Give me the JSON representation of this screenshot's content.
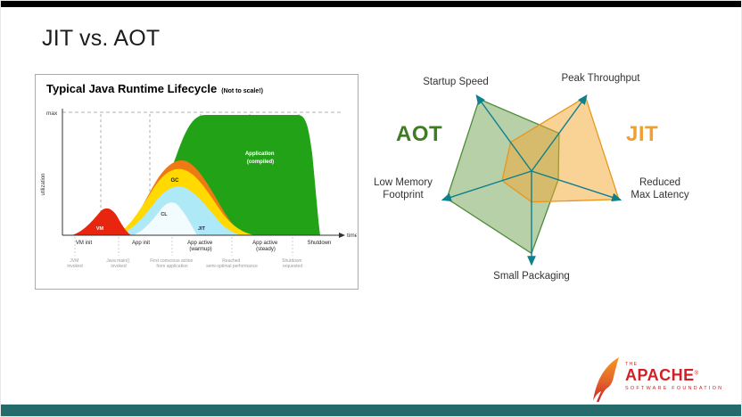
{
  "slide": {
    "title": "JIT vs. AOT"
  },
  "lifecycle": {
    "title": "Typical Java Runtime Lifecycle",
    "note": "(Not to scale!)",
    "y_axis_label": "utilization",
    "max_label": "max",
    "x_axis_label": "time",
    "phases": [
      [
        "VM init"
      ],
      [
        "App init"
      ],
      [
        "App active",
        "(warmup)"
      ],
      [
        "App active",
        "(steady)"
      ],
      [
        "Shutdown"
      ]
    ],
    "events": [
      [
        "JVM",
        "invoked"
      ],
      [
        "Java main()",
        "invoked"
      ],
      [
        "First conscious action",
        "from application"
      ],
      [
        "Reached",
        "semi-optimal performance"
      ],
      [
        "Shutdown",
        "requested"
      ]
    ],
    "area_labels": {
      "vm": "VM",
      "cl": "CL",
      "jit": "JIT",
      "gc": "GC",
      "app_line1": "Application",
      "app_line2": "(compiled)"
    }
  },
  "radar": {
    "aot_label": "AOT",
    "jit_label": "JIT",
    "labels": {
      "startup_speed": [
        "Startup Speed"
      ],
      "peak_throughput": [
        "Peak Throughput"
      ],
      "reduced_max_latency": [
        "Reduced",
        "Max Latency"
      ],
      "small_packaging": [
        "Small Packaging"
      ],
      "low_memory_footprint": [
        "Low Memory",
        "Footprint"
      ]
    }
  },
  "logo": {
    "the": "THE",
    "name": "APACHE",
    "registered": "®",
    "subtitle": "SOFTWARE FOUNDATION"
  },
  "chart_data": [
    {
      "type": "area",
      "title": "Typical Java Runtime Lifecycle",
      "subtitle": "(Not to scale!)",
      "xlabel": "time",
      "ylabel": "utilization",
      "ylim_label": "max",
      "grid": "dashed vertical phase separators, dashed max line",
      "x_phases": [
        "VM init",
        "App init",
        "App active (warmup)",
        "App active (steady)",
        "Shutdown"
      ],
      "annotations": [
        "JVM invoked",
        "Java main() invoked",
        "First conscious action from application",
        "Reached semi-optimal performance",
        "Shutdown requested"
      ],
      "series": [
        {
          "name": "VM",
          "color": "#e8250f",
          "shape": "small bump during VM init"
        },
        {
          "name": "CL",
          "color": "#f2fcff",
          "shape": "small class-loading hump during app init"
        },
        {
          "name": "JIT",
          "color": "#ade9f6",
          "shape": "compilation hump peaking during warmup"
        },
        {
          "name": "GC",
          "color": "#ffd900",
          "shape": "hump layered over JIT, fading into steady state"
        },
        {
          "name": "Application (compiled)",
          "color": "#22a317",
          "shape": "rises through warmup to max, plateau during steady state, drops at shutdown"
        }
      ]
    },
    {
      "type": "radar",
      "categories": [
        "Peak Throughput",
        "Startup Speed",
        "Low Memory Footprint",
        "Small Packaging",
        "Reduced Max Latency"
      ],
      "angles_deg": [
        54,
        126,
        198,
        270,
        342
      ],
      "scale": [
        0,
        1
      ],
      "axis_color": "#0e7f8d",
      "legend_position": "labels beside chart (AOT left, JIT right)",
      "series": [
        {
          "name": "AOT",
          "color": "#4c8c3a",
          "fill": "rgba(96,150,62,0.45)",
          "values": [
            0.5,
            0.95,
            0.95,
            0.88,
            0.3
          ]
        },
        {
          "name": "JIT",
          "color": "#e8971e",
          "fill": "rgba(244,166,46,0.50)",
          "values": [
            0.98,
            0.38,
            0.33,
            0.33,
            0.98
          ]
        }
      ]
    }
  ]
}
